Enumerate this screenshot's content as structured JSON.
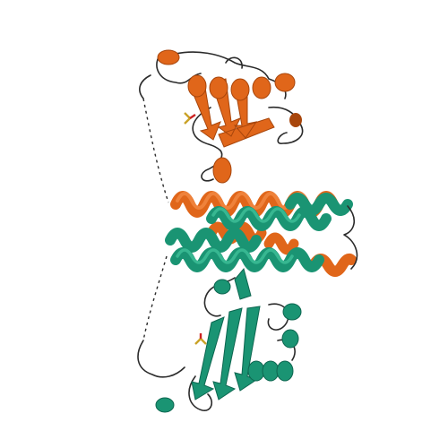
{
  "image": {
    "background": "#ffffff",
    "chains": [
      {
        "name": "chain-a",
        "color": "#e0661a",
        "shade": "#a8460c",
        "highlight": "#f28a44"
      },
      {
        "name": "chain-b",
        "color": "#1a9473",
        "shade": "#0d6650",
        "highlight": "#3fbf98"
      }
    ],
    "loop_color": "#2b2b2b",
    "element_colors": {
      "sulfur": "#c9a227",
      "oxygen": "#cc2222"
    }
  }
}
